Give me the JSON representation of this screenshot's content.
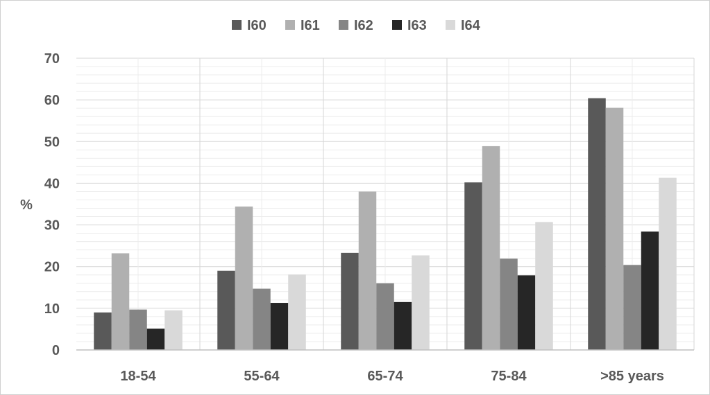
{
  "chart_data": {
    "type": "bar",
    "title": "",
    "xlabel": "",
    "ylabel": "%",
    "ylim": [
      0,
      70
    ],
    "yticks": [
      0,
      10,
      20,
      30,
      40,
      50,
      60,
      70
    ],
    "grid": true,
    "legend_position": "top-center",
    "categories": [
      "18-54",
      "55-64",
      "65-74",
      "75-84",
      ">85 years"
    ],
    "series": [
      {
        "name": "I60",
        "color": "#595959",
        "values": [
          9.0,
          19.0,
          23.3,
          40.2,
          60.4
        ]
      },
      {
        "name": "I61",
        "color": "#b0b0b0",
        "values": [
          23.2,
          34.4,
          38.0,
          48.9,
          58.1
        ]
      },
      {
        "name": "I62",
        "color": "#858585",
        "values": [
          9.7,
          14.7,
          16.0,
          21.9,
          20.4
        ]
      },
      {
        "name": "I63",
        "color": "#262626",
        "values": [
          5.1,
          11.3,
          11.5,
          17.9,
          28.4
        ]
      },
      {
        "name": "I64",
        "color": "#d9d9d9",
        "values": [
          9.5,
          18.1,
          22.7,
          30.7,
          41.3
        ]
      }
    ]
  }
}
